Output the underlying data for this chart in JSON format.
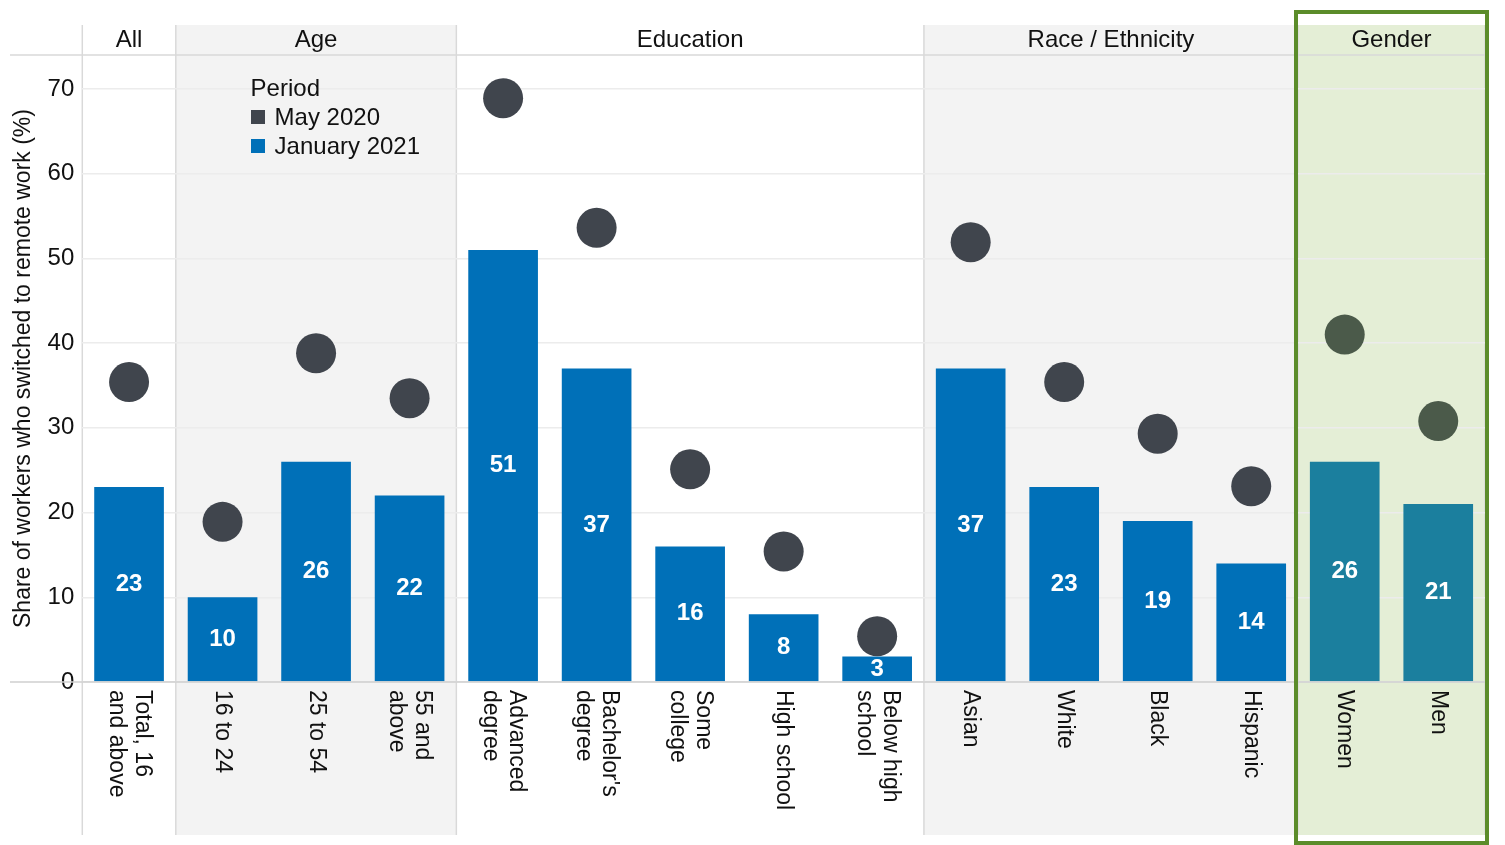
{
  "chart_data": {
    "type": "bar",
    "ylabel": "Share of workers who switched to remote work (%)",
    "legend_title": "Period",
    "legend": "top left",
    "grid": "y",
    "categories": [
      "Total, 16 and above",
      "16 to 24",
      "25 to 54",
      "55 and above",
      "Advanced degree",
      "Bachelor's degree",
      "Some college",
      "High school",
      "Below high school",
      "Asian",
      "White",
      "Black",
      "Hispanic",
      "Women",
      "Men"
    ],
    "ylim": [
      0,
      74
    ],
    "yticks": [
      0,
      10,
      20,
      30,
      40,
      50,
      60,
      70
    ],
    "series": [
      {
        "name": "January 2021",
        "type": "bar",
        "color": "#0070b8",
        "colors": [
          "#0070b8",
          "#0070b8",
          "#0070b8",
          "#0070b8",
          "#0070b8",
          "#0070b8",
          "#0070b8",
          "#0070b8",
          "#0070b8",
          "#0070b8",
          "#0070b8",
          "#0070b8",
          "#0070b8",
          "#1b7f9e",
          "#1b7f9e"
        ],
        "values": [
          23,
          10,
          26,
          22,
          51,
          37,
          16,
          8,
          3,
          37,
          23,
          19,
          14,
          26,
          21
        ],
        "value_labels": [
          "23",
          "10",
          "26",
          "22",
          "51",
          "37",
          "16",
          "8",
          "3",
          "37",
          "23",
          "19",
          "14",
          "26",
          "21"
        ]
      },
      {
        "name": "May 2020",
        "type": "scatter",
        "marker": "circle",
        "color": "#40454d",
        "colors": [
          "#40454d",
          "#40454d",
          "#40454d",
          "#40454d",
          "#40454d",
          "#40454d",
          "#40454d",
          "#40454d",
          "#40454d",
          "#40454d",
          "#40454d",
          "#40454d",
          "#40454d",
          "#4b5a4a",
          "#4b5a4a"
        ],
        "x": [
          "Total, 16 and above",
          "16 to 24",
          "25 to 54",
          "55 and above",
          "Advanced degree",
          "Bachelor's degree",
          "Some college",
          "High school",
          "Below high school",
          "Asian",
          "White",
          "Black",
          "Hispanic",
          "Women",
          "Men"
        ],
        "values": [
          35.4,
          18.9,
          38.8,
          33.5,
          68.9,
          53.6,
          25.1,
          15.4,
          5.4,
          51.9,
          35.4,
          29.3,
          23.1,
          41,
          30.8
        ]
      }
    ],
    "annotations": [
      "All",
      "Education"
    ],
    "bands": [
      {
        "axis": "x",
        "from": "16 to 24",
        "to": "55 and above",
        "label": "Age",
        "color": "#f3f3f3"
      },
      {
        "axis": "x",
        "from": "Asian",
        "to": "Hispanic",
        "label": "Race / Ethnicity",
        "color": "#f3f3f3"
      },
      {
        "axis": "x",
        "from": "Women",
        "to": "Men",
        "label": "Gender",
        "color": "#e4eed6"
      }
    ]
  }
}
